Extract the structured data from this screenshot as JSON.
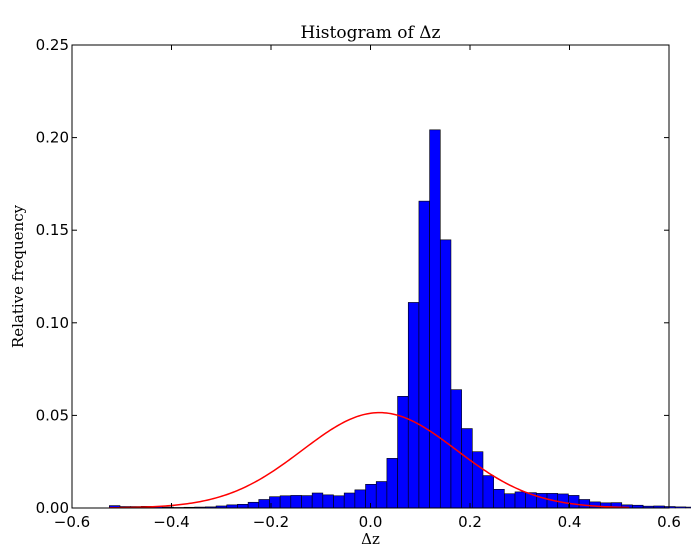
{
  "chart_data": {
    "type": "bar",
    "title": "Histogram of Δz",
    "xlabel": "Δz",
    "ylabel": "Relative frequency",
    "xlim": [
      -0.6,
      0.6
    ],
    "ylim": [
      0,
      0.25
    ],
    "xticks": [
      -0.6,
      -0.4,
      -0.2,
      0.0,
      0.2,
      0.4,
      0.6
    ],
    "xtick_labels": [
      "−0.6",
      "−0.4",
      "−0.2",
      "0.0",
      "0.2",
      "0.4",
      "0.6"
    ],
    "yticks": [
      0.0,
      0.05,
      0.1,
      0.15,
      0.2,
      0.25
    ],
    "ytick_labels": [
      "0.00",
      "0.05",
      "0.10",
      "0.15",
      "0.20",
      "0.25"
    ],
    "grid": false,
    "bin_width": 0.02146,
    "bin_start": -0.525,
    "values": [
      0.0013,
      0.0008,
      0.0008,
      0.0009,
      0.0007,
      0.0005,
      0.0003,
      0.0004,
      0.0005,
      0.0006,
      0.0011,
      0.0017,
      0.002,
      0.0031,
      0.0046,
      0.0061,
      0.0066,
      0.0068,
      0.0067,
      0.0081,
      0.0071,
      0.0066,
      0.0081,
      0.0098,
      0.0128,
      0.0143,
      0.0268,
      0.0603,
      0.111,
      0.1657,
      0.2042,
      0.1448,
      0.0639,
      0.0429,
      0.0304,
      0.0175,
      0.0101,
      0.0077,
      0.0087,
      0.0083,
      0.0079,
      0.0079,
      0.0076,
      0.0068,
      0.0046,
      0.0033,
      0.0028,
      0.0029,
      0.0017,
      0.0015,
      0.001,
      0.0011,
      0.0008,
      0.0006,
      0.0005,
      0.0046
    ],
    "bar_color": "#0000ff",
    "bar_edge": "#000000",
    "overlay": {
      "type": "line",
      "curve": "normal",
      "color": "#ff0000",
      "peak": 0.0515,
      "mean": 0.018,
      "sd": 0.155,
      "x_range": [
        -0.525,
        0.52
      ]
    }
  }
}
